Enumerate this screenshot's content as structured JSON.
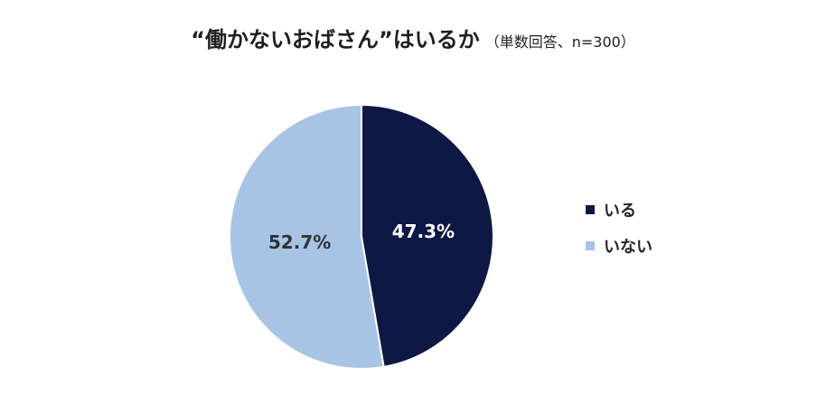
{
  "title": {
    "main": "“働かないおばさん”はいるか",
    "sub": "（単数回答、n=300）"
  },
  "colors": {
    "iru": "#0e1845",
    "inai": "#a7c4e5",
    "label_on_dark": "#ffffff",
    "label_on_light": "#333333",
    "slice_border": "#ffffff"
  },
  "chart_data": {
    "type": "pie",
    "title": "“働かないおばさん”はいるか",
    "subtitle": "（単数回答、n=300）",
    "start": "12 o'clock",
    "direction": "clockwise",
    "legend_position": "right",
    "slices": [
      {
        "label": "いる",
        "value": 47.3,
        "display": "47.3%"
      },
      {
        "label": "いない",
        "value": 52.7,
        "display": "52.7%"
      }
    ]
  },
  "legend": [
    {
      "label": "いる"
    },
    {
      "label": "いない"
    }
  ]
}
